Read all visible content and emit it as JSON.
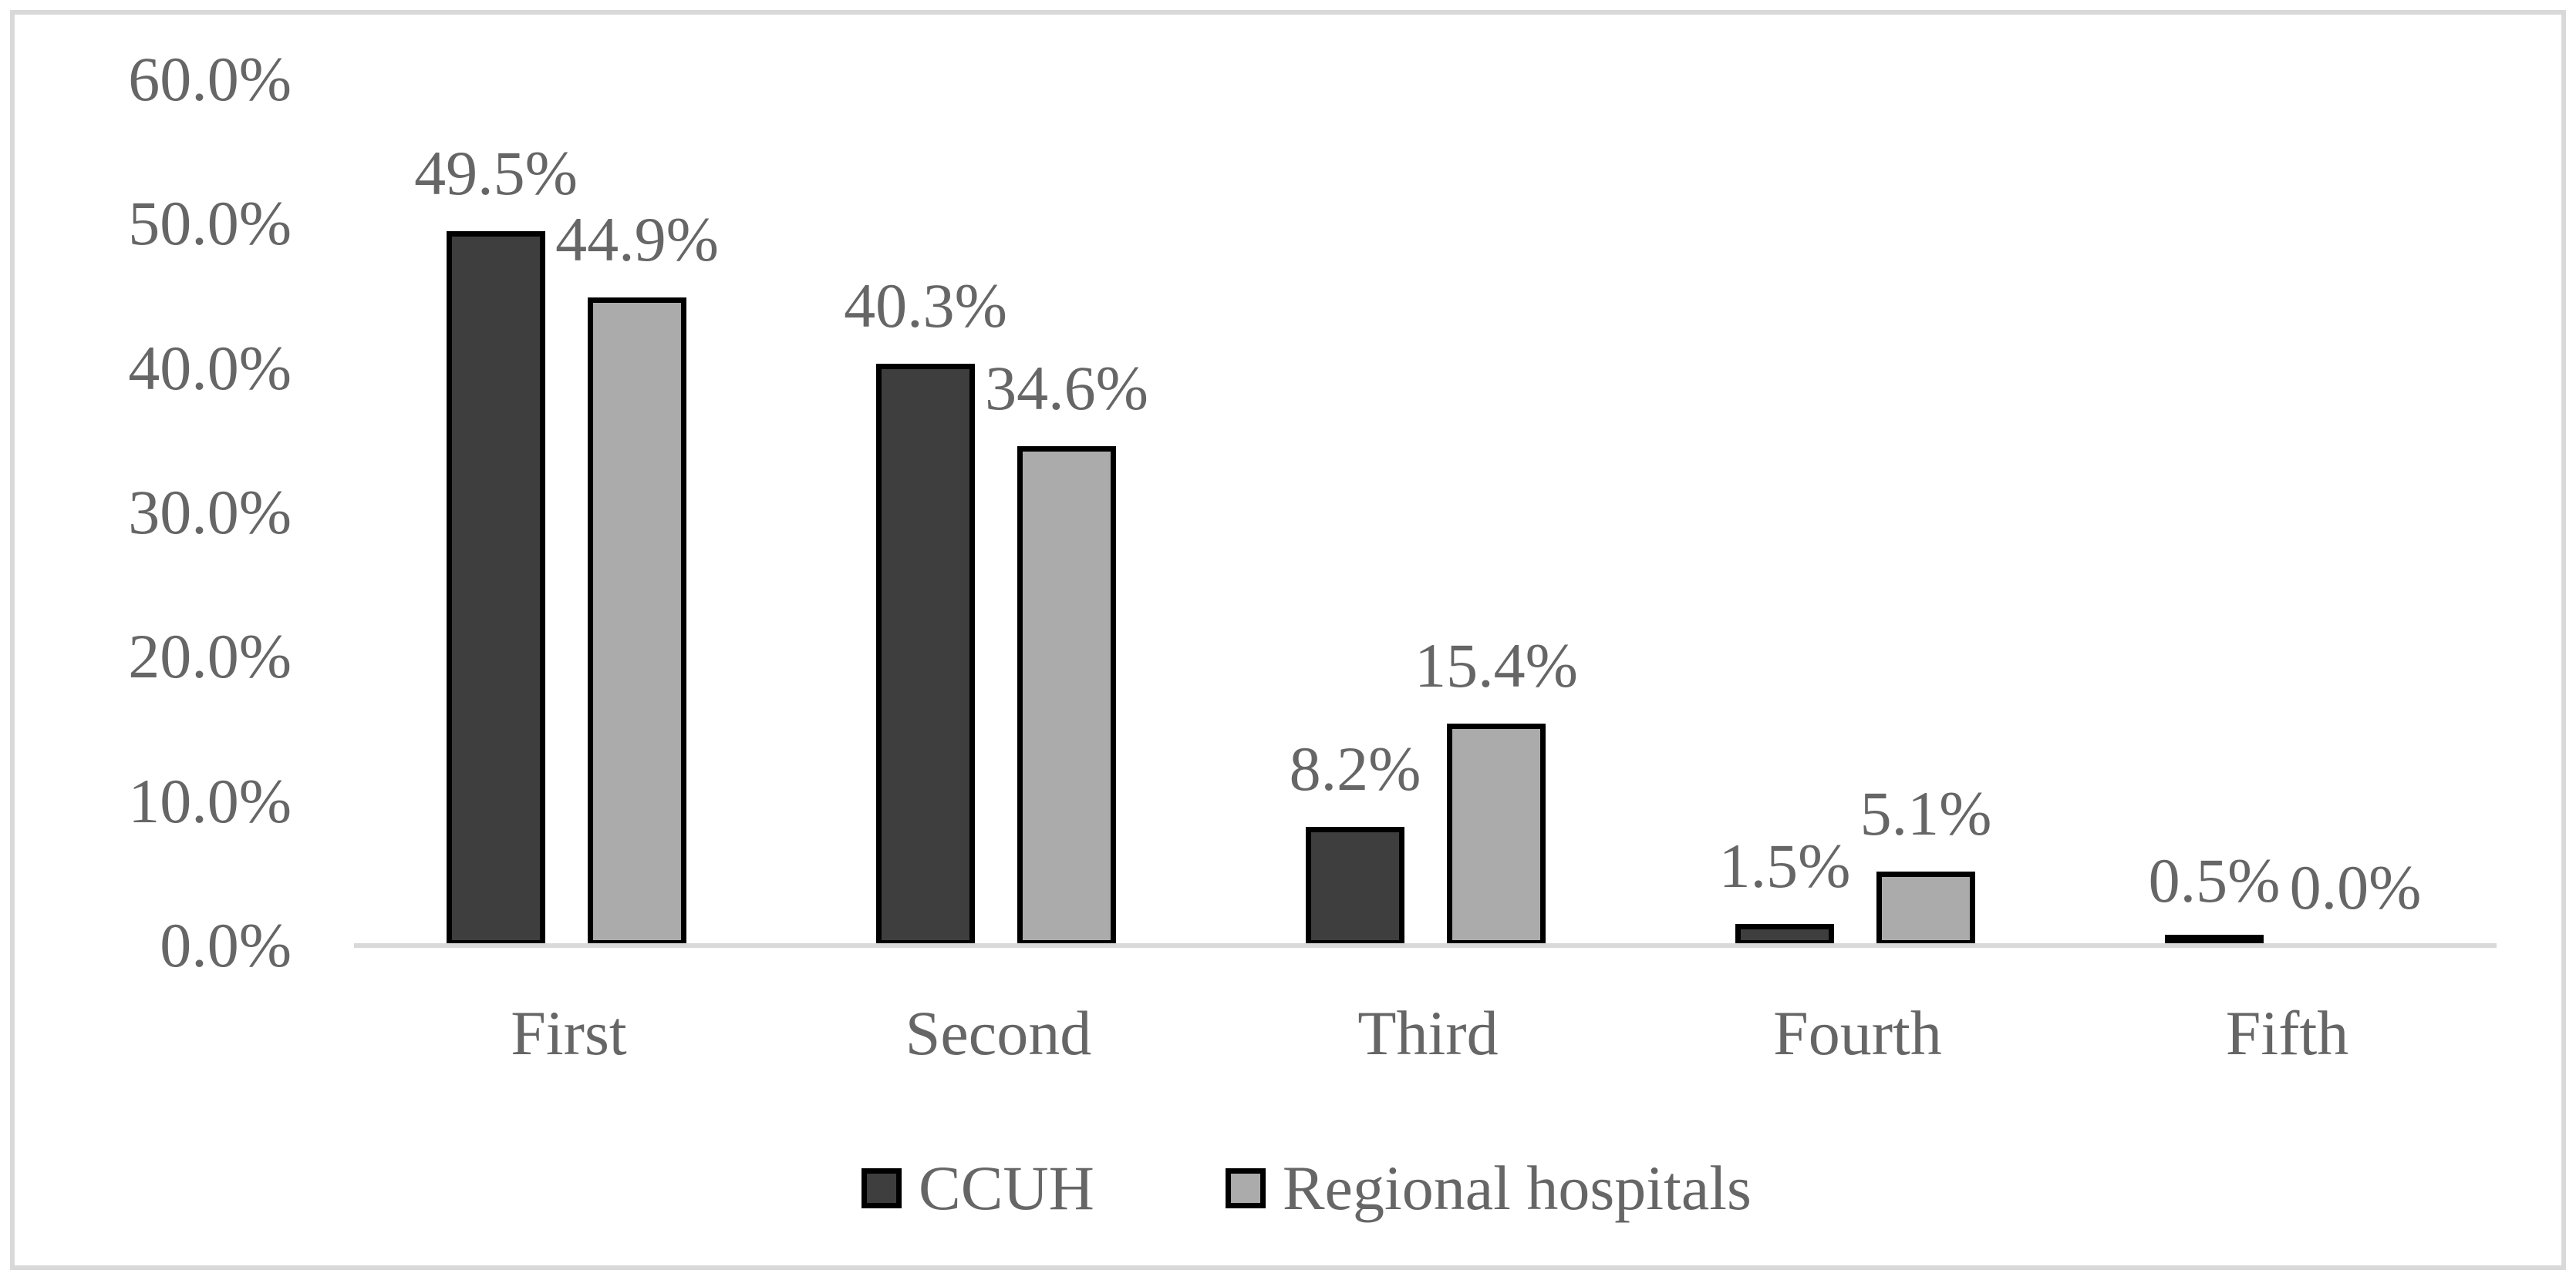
{
  "chart_data": {
    "type": "bar",
    "title": "",
    "xlabel": "",
    "ylabel": "",
    "categories": [
      "First",
      "Second",
      "Third",
      "Fourth",
      "Fifth"
    ],
    "series": [
      {
        "name": "CCUH",
        "fill_color": "#3e3e3e",
        "border_color": "#000000",
        "values": [
          49.5,
          40.3,
          8.2,
          1.5,
          0.5
        ],
        "labels": [
          "49.5%",
          "40.3%",
          "8.2%",
          "1.5%",
          "0.5%"
        ]
      },
      {
        "name": "Regional hospitals",
        "fill_color": "#ababab",
        "border_color": "#000000",
        "values": [
          44.9,
          34.6,
          15.4,
          5.1,
          0.0
        ],
        "labels": [
          "44.9%",
          "34.6%",
          "15.4%",
          "5.1%",
          "0.0%"
        ]
      }
    ],
    "ylim": [
      0,
      60
    ],
    "ytick_step": 10,
    "yticks": [
      "0.0%",
      "10.0%",
      "20.0%",
      "30.0%",
      "40.0%",
      "50.0%",
      "60.0%"
    ],
    "grid": false,
    "data_labels_position": "outside-end",
    "legend_position": "bottom"
  },
  "style_colors": {
    "axis_line": "#d9d9d9",
    "frame_border": "#d9d9d9",
    "text": "#666666",
    "background": "#ffffff"
  }
}
